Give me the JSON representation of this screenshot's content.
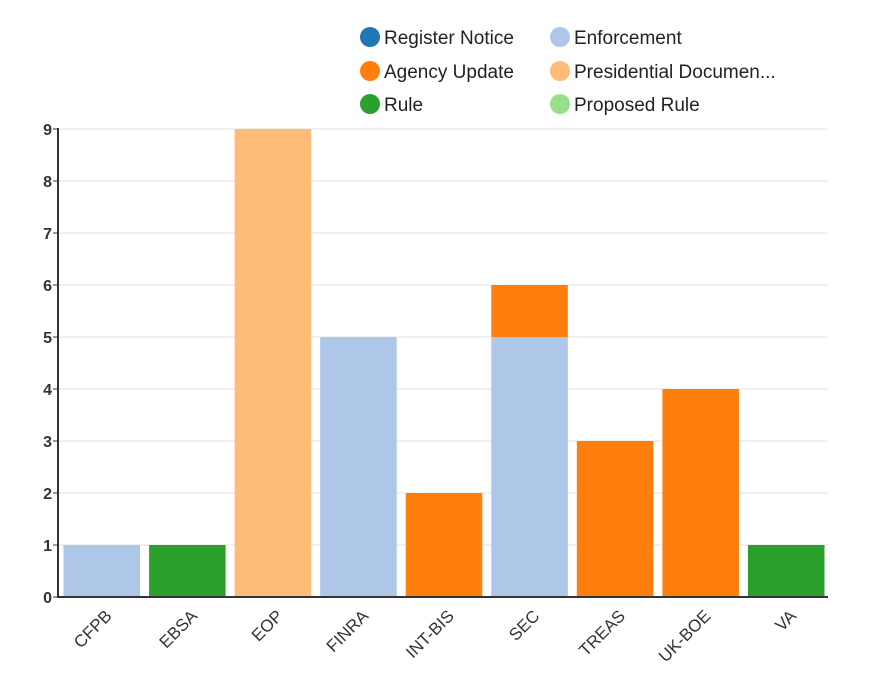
{
  "chart_data": {
    "type": "bar",
    "stacked": true,
    "title": "",
    "xlabel": "",
    "ylabel": "",
    "ylim": [
      0,
      9
    ],
    "yticks": [
      0,
      1,
      2,
      3,
      4,
      5,
      6,
      7,
      8,
      9
    ],
    "grid": true,
    "legend_position": "top-center",
    "categories": [
      "CFPB",
      "EBSA",
      "EOP",
      "FINRA",
      "INT-BIS",
      "SEC",
      "TREAS",
      "UK-BOE",
      "VA"
    ],
    "series": [
      {
        "name": "Register Notice",
        "color": "#1f77b4",
        "values": [
          0,
          0,
          0,
          0,
          0,
          0,
          0,
          0,
          0
        ]
      },
      {
        "name": "Enforcement",
        "color": "#aec7e8",
        "values": [
          1,
          0,
          0,
          5,
          0,
          5,
          0,
          0,
          0
        ]
      },
      {
        "name": "Agency Update",
        "color": "#ff7f0e",
        "values": [
          0,
          0,
          0,
          0,
          2,
          1,
          3,
          4,
          0
        ]
      },
      {
        "name": "Presidential Documen...",
        "color": "#ffbb78",
        "values": [
          0,
          0,
          9,
          0,
          0,
          0,
          0,
          0,
          0
        ]
      },
      {
        "name": "Rule",
        "color": "#2ca02c",
        "values": [
          0,
          1,
          0,
          0,
          0,
          0,
          0,
          0,
          1
        ]
      },
      {
        "name": "Proposed Rule",
        "color": "#98df8a",
        "values": [
          0,
          0,
          0,
          0,
          0,
          0,
          0,
          0,
          0
        ]
      }
    ]
  }
}
